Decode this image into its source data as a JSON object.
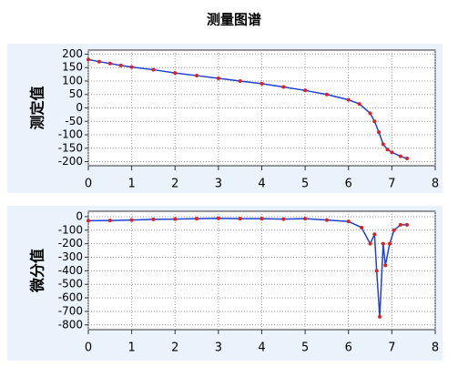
{
  "title": "测量图谱",
  "chart_data": [
    {
      "type": "line",
      "ylabel": "测定值",
      "xlim": [
        0,
        8
      ],
      "xticks": [
        0,
        1,
        2,
        3,
        4,
        5,
        6,
        7,
        8
      ],
      "ylim": [
        -215,
        215
      ],
      "yticks": [
        200,
        150,
        100,
        50,
        0,
        -50,
        -100,
        -150,
        -200
      ],
      "grid": true,
      "series": [
        {
          "color": "#e02020",
          "line_color": "#2040d0",
          "x": [
            0,
            0.25,
            0.5,
            0.75,
            1,
            1.5,
            2,
            2.5,
            3,
            3.5,
            4,
            4.5,
            5,
            5.5,
            6,
            6.25,
            6.5,
            6.6,
            6.7,
            6.8,
            6.9,
            7,
            7.2,
            7.35
          ],
          "values": [
            180,
            172,
            165,
            158,
            152,
            142,
            130,
            120,
            110,
            100,
            90,
            78,
            65,
            50,
            30,
            15,
            -20,
            -50,
            -90,
            -135,
            -155,
            -165,
            -180,
            -188
          ]
        }
      ]
    },
    {
      "type": "line",
      "ylabel": "微分值",
      "xlim": [
        0,
        8
      ],
      "xticks": [
        0,
        1,
        2,
        3,
        4,
        5,
        6,
        7,
        8
      ],
      "ylim": [
        -835,
        40
      ],
      "yticks": [
        0,
        -100,
        -200,
        -300,
        -400,
        -500,
        -600,
        -700,
        -800
      ],
      "grid": true,
      "series": [
        {
          "color": "#e02020",
          "line_color": "#2040d0",
          "x": [
            0,
            0.5,
            1,
            1.5,
            2,
            2.5,
            3,
            3.5,
            4,
            4.5,
            5,
            5.5,
            6,
            6.3,
            6.5,
            6.6,
            6.65,
            6.72,
            6.8,
            6.85,
            6.95,
            7.05,
            7.2,
            7.35
          ],
          "values": [
            -30,
            -28,
            -25,
            -20,
            -18,
            -15,
            -12,
            -15,
            -15,
            -18,
            -15,
            -25,
            -35,
            -80,
            -200,
            -130,
            -400,
            -740,
            -200,
            -360,
            -200,
            -100,
            -60,
            -60
          ]
        }
      ]
    }
  ]
}
